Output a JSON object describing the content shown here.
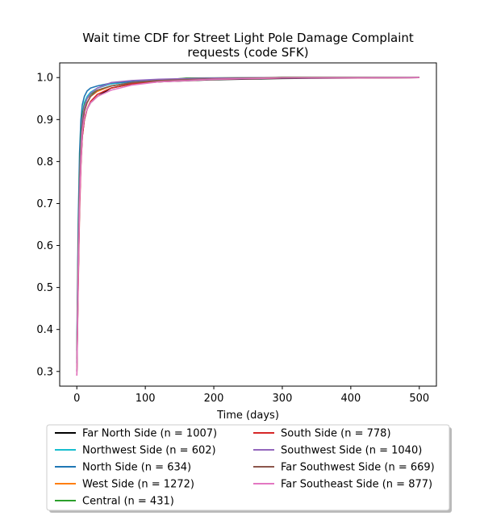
{
  "chart_data": {
    "type": "line",
    "title_lines": [
      "Wait time CDF for Street Light Pole Damage Complaint",
      "requests (code SFK)"
    ],
    "xlabel": "Time (days)",
    "ylabel": "",
    "xlim": [
      -25,
      525
    ],
    "ylim": [
      0.265,
      1.035
    ],
    "xticks": [
      0,
      100,
      200,
      300,
      400,
      500
    ],
    "yticks": [
      0.3,
      0.4,
      0.5,
      0.6,
      0.7,
      0.8,
      0.9,
      1.0
    ],
    "grid": false,
    "legend_position": "below plot, two columns",
    "series": [
      {
        "name": "Far North Side (n = 1007)",
        "color": "#000000",
        "points": [
          [
            0,
            0.3
          ],
          [
            2,
            0.52
          ],
          [
            4,
            0.7
          ],
          [
            6,
            0.8
          ],
          [
            8,
            0.86
          ],
          [
            11,
            0.9
          ],
          [
            15,
            0.925
          ],
          [
            20,
            0.94
          ],
          [
            30,
            0.955
          ],
          [
            50,
            0.975
          ],
          [
            80,
            0.985
          ],
          [
            120,
            0.99
          ],
          [
            200,
            0.995
          ],
          [
            300,
            0.998
          ],
          [
            500,
            1.0
          ]
        ]
      },
      {
        "name": "Northwest Side (n = 602)",
        "color": "#17becf",
        "points": [
          [
            0,
            0.32
          ],
          [
            2,
            0.6
          ],
          [
            4,
            0.77
          ],
          [
            6,
            0.86
          ],
          [
            8,
            0.91
          ],
          [
            11,
            0.94
          ],
          [
            15,
            0.955
          ],
          [
            20,
            0.965
          ],
          [
            30,
            0.975
          ],
          [
            50,
            0.985
          ],
          [
            80,
            0.99
          ],
          [
            120,
            0.995
          ],
          [
            200,
            0.998
          ],
          [
            300,
            1.0
          ],
          [
            500,
            1.0
          ]
        ]
      },
      {
        "name": "North Side (n = 634)",
        "color": "#1f77b4",
        "points": [
          [
            0,
            0.35
          ],
          [
            2,
            0.65
          ],
          [
            4,
            0.82
          ],
          [
            6,
            0.9
          ],
          [
            8,
            0.935
          ],
          [
            11,
            0.955
          ],
          [
            15,
            0.968
          ],
          [
            20,
            0.975
          ],
          [
            30,
            0.98
          ],
          [
            50,
            0.987
          ],
          [
            80,
            0.99
          ],
          [
            120,
            0.995
          ],
          [
            200,
            0.998
          ],
          [
            300,
            1.0
          ],
          [
            500,
            1.0
          ]
        ]
      },
      {
        "name": "West Side (n = 1272)",
        "color": "#ff7f0e",
        "points": [
          [
            0,
            0.31
          ],
          [
            2,
            0.56
          ],
          [
            4,
            0.73
          ],
          [
            6,
            0.82
          ],
          [
            8,
            0.88
          ],
          [
            11,
            0.92
          ],
          [
            15,
            0.94
          ],
          [
            20,
            0.955
          ],
          [
            30,
            0.967
          ],
          [
            50,
            0.98
          ],
          [
            80,
            0.988
          ],
          [
            120,
            0.993
          ],
          [
            200,
            0.997
          ],
          [
            300,
            1.0
          ],
          [
            500,
            1.0
          ]
        ]
      },
      {
        "name": "Central (n = 431)",
        "color": "#2ca02c",
        "points": [
          [
            0,
            0.33
          ],
          [
            2,
            0.6
          ],
          [
            4,
            0.77
          ],
          [
            6,
            0.86
          ],
          [
            8,
            0.91
          ],
          [
            11,
            0.935
          ],
          [
            15,
            0.95
          ],
          [
            20,
            0.96
          ],
          [
            30,
            0.97
          ],
          [
            50,
            0.98
          ],
          [
            80,
            0.987
          ],
          [
            120,
            0.993
          ],
          [
            160,
            0.999
          ],
          [
            300,
            1.0
          ],
          [
            500,
            1.0
          ]
        ]
      },
      {
        "name": "South Side (n = 778)",
        "color": "#d62728",
        "points": [
          [
            0,
            0.29
          ],
          [
            2,
            0.5
          ],
          [
            4,
            0.68
          ],
          [
            6,
            0.79
          ],
          [
            8,
            0.86
          ],
          [
            11,
            0.9
          ],
          [
            15,
            0.925
          ],
          [
            20,
            0.943
          ],
          [
            30,
            0.96
          ],
          [
            50,
            0.975
          ],
          [
            80,
            0.985
          ],
          [
            120,
            0.99
          ],
          [
            200,
            0.996
          ],
          [
            300,
            0.999
          ],
          [
            500,
            1.0
          ]
        ]
      },
      {
        "name": "Southwest Side (n = 1040)",
        "color": "#9467bd",
        "points": [
          [
            0,
            0.32
          ],
          [
            2,
            0.58
          ],
          [
            4,
            0.75
          ],
          [
            6,
            0.84
          ],
          [
            8,
            0.9
          ],
          [
            11,
            0.93
          ],
          [
            15,
            0.95
          ],
          [
            20,
            0.962
          ],
          [
            30,
            0.975
          ],
          [
            50,
            0.988
          ],
          [
            80,
            0.993
          ],
          [
            120,
            0.996
          ],
          [
            200,
            0.999
          ],
          [
            300,
            1.0
          ],
          [
            500,
            1.0
          ]
        ]
      },
      {
        "name": "Far Southwest Side (n = 669)",
        "color": "#8c564b",
        "points": [
          [
            0,
            0.3
          ],
          [
            2,
            0.55
          ],
          [
            4,
            0.72
          ],
          [
            6,
            0.82
          ],
          [
            8,
            0.88
          ],
          [
            11,
            0.92
          ],
          [
            15,
            0.94
          ],
          [
            20,
            0.955
          ],
          [
            30,
            0.97
          ],
          [
            50,
            0.98
          ],
          [
            80,
            0.988
          ],
          [
            120,
            0.993
          ],
          [
            200,
            0.997
          ],
          [
            300,
            1.0
          ],
          [
            500,
            1.0
          ]
        ]
      },
      {
        "name": "Far Southeast Side (n = 877)",
        "color": "#e377c2",
        "points": [
          [
            0,
            0.29
          ],
          [
            2,
            0.52
          ],
          [
            4,
            0.7
          ],
          [
            6,
            0.8
          ],
          [
            8,
            0.87
          ],
          [
            11,
            0.905
          ],
          [
            15,
            0.925
          ],
          [
            20,
            0.94
          ],
          [
            30,
            0.955
          ],
          [
            50,
            0.97
          ],
          [
            80,
            0.982
          ],
          [
            120,
            0.99
          ],
          [
            200,
            0.996
          ],
          [
            300,
            0.999
          ],
          [
            500,
            1.0
          ]
        ]
      }
    ]
  }
}
